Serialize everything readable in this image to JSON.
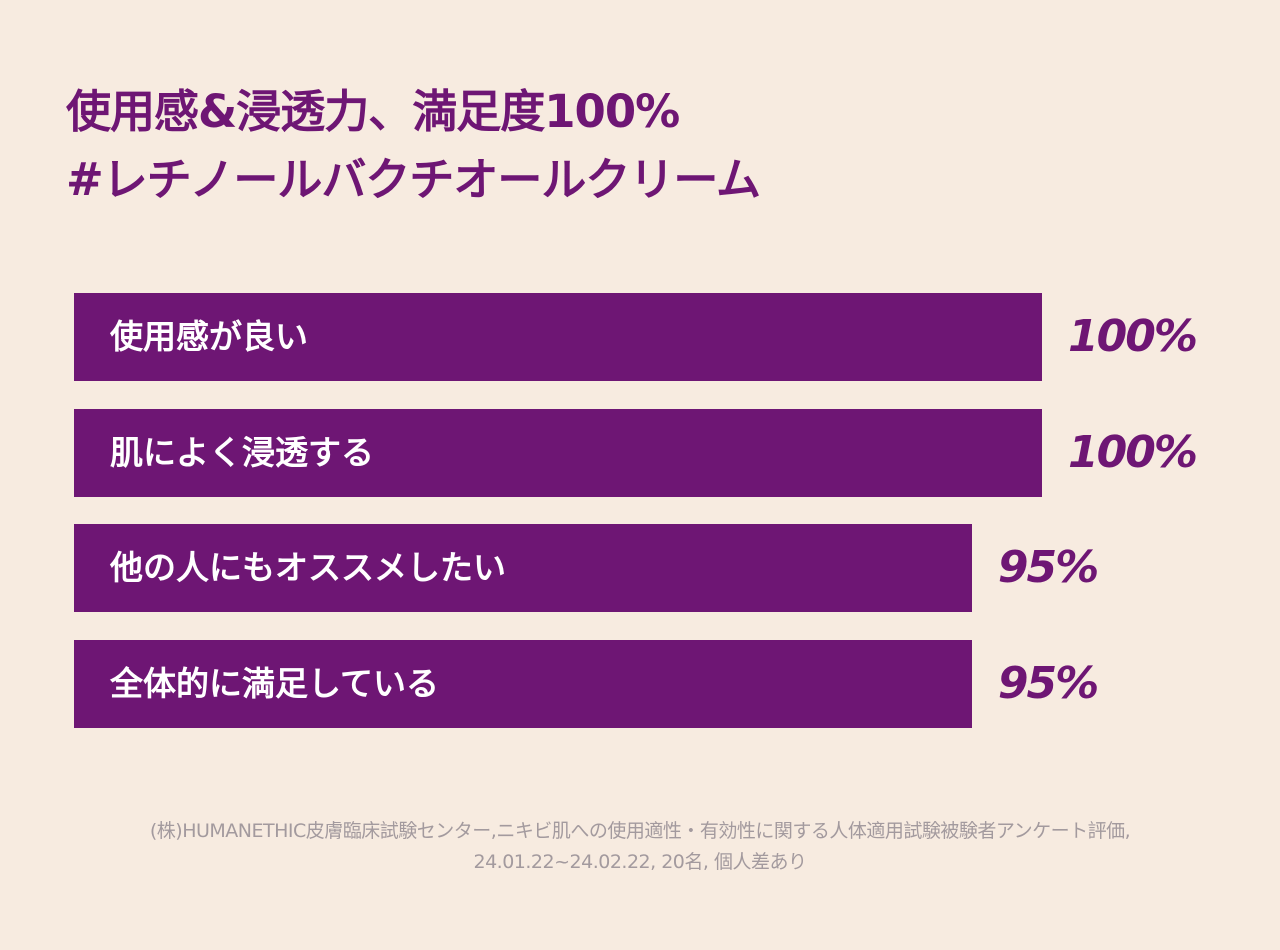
{
  "chart_data": {
    "type": "bar",
    "orientation": "horizontal",
    "title": [
      "使用感&浸透力、満足度100%",
      "#レチノールバクチオールクリーム"
    ],
    "categories": [
      "使用感が良い",
      "肌によく浸透する",
      "他の人にもオススメしたい",
      "全体的に満足している"
    ],
    "values": [
      100,
      100,
      95,
      95
    ],
    "value_labels": [
      "100%",
      "100%",
      "95%",
      "95%"
    ],
    "xlim": [
      31,
      100
    ],
    "grid": false,
    "colors": {
      "bar": "#6e1674",
      "background": "#f7ebe0",
      "label": "#ffffff",
      "value": "#6e1674"
    }
  },
  "footnote": [
    "(株)HUMANETHIC皮膚臨床試験センター,ニキビ肌への使用適性・有効性に関する人体適用試験被験者アンケート評価,",
    "24.01.22~24.02.22, 20名, 個人差あり"
  ]
}
